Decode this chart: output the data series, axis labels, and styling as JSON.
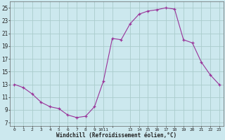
{
  "title": "",
  "xlabel": "Windchill (Refroidissement éolien,°C)",
  "ylabel": "",
  "background_color": "#cce8ee",
  "grid_color": "#aacccc",
  "line_color": "#993399",
  "marker_color": "#993399",
  "xlim_min": -0.5,
  "xlim_max": 23.5,
  "ylim_min": 6.5,
  "ylim_max": 26.0,
  "yticks": [
    7,
    9,
    11,
    13,
    15,
    17,
    19,
    21,
    23,
    25
  ],
  "xtick_pos": [
    0,
    1,
    2,
    3,
    4,
    5,
    6,
    7,
    8,
    9,
    10,
    11,
    13,
    14,
    15,
    16,
    17,
    18,
    19,
    20,
    21,
    22,
    23
  ],
  "xtick_labels": [
    "0",
    "1",
    "2",
    "3",
    "4",
    "5",
    "6",
    "7",
    "8",
    "9",
    "1011",
    "",
    "13",
    "14",
    "15",
    "16",
    "17",
    "18",
    "19",
    "20",
    "21",
    "22",
    "23"
  ],
  "hours": [
    0,
    1,
    2,
    3,
    4,
    5,
    6,
    7,
    8,
    9,
    10,
    11,
    12,
    13,
    14,
    15,
    16,
    17,
    18,
    19,
    20,
    21,
    22,
    23
  ],
  "values": [
    13.0,
    12.5,
    11.5,
    10.2,
    9.5,
    9.2,
    8.2,
    7.8,
    8.0,
    9.5,
    13.5,
    20.2,
    20.0,
    22.5,
    24.0,
    24.5,
    24.7,
    25.0,
    24.8,
    20.0,
    19.5,
    16.5,
    14.5,
    13.0
  ]
}
